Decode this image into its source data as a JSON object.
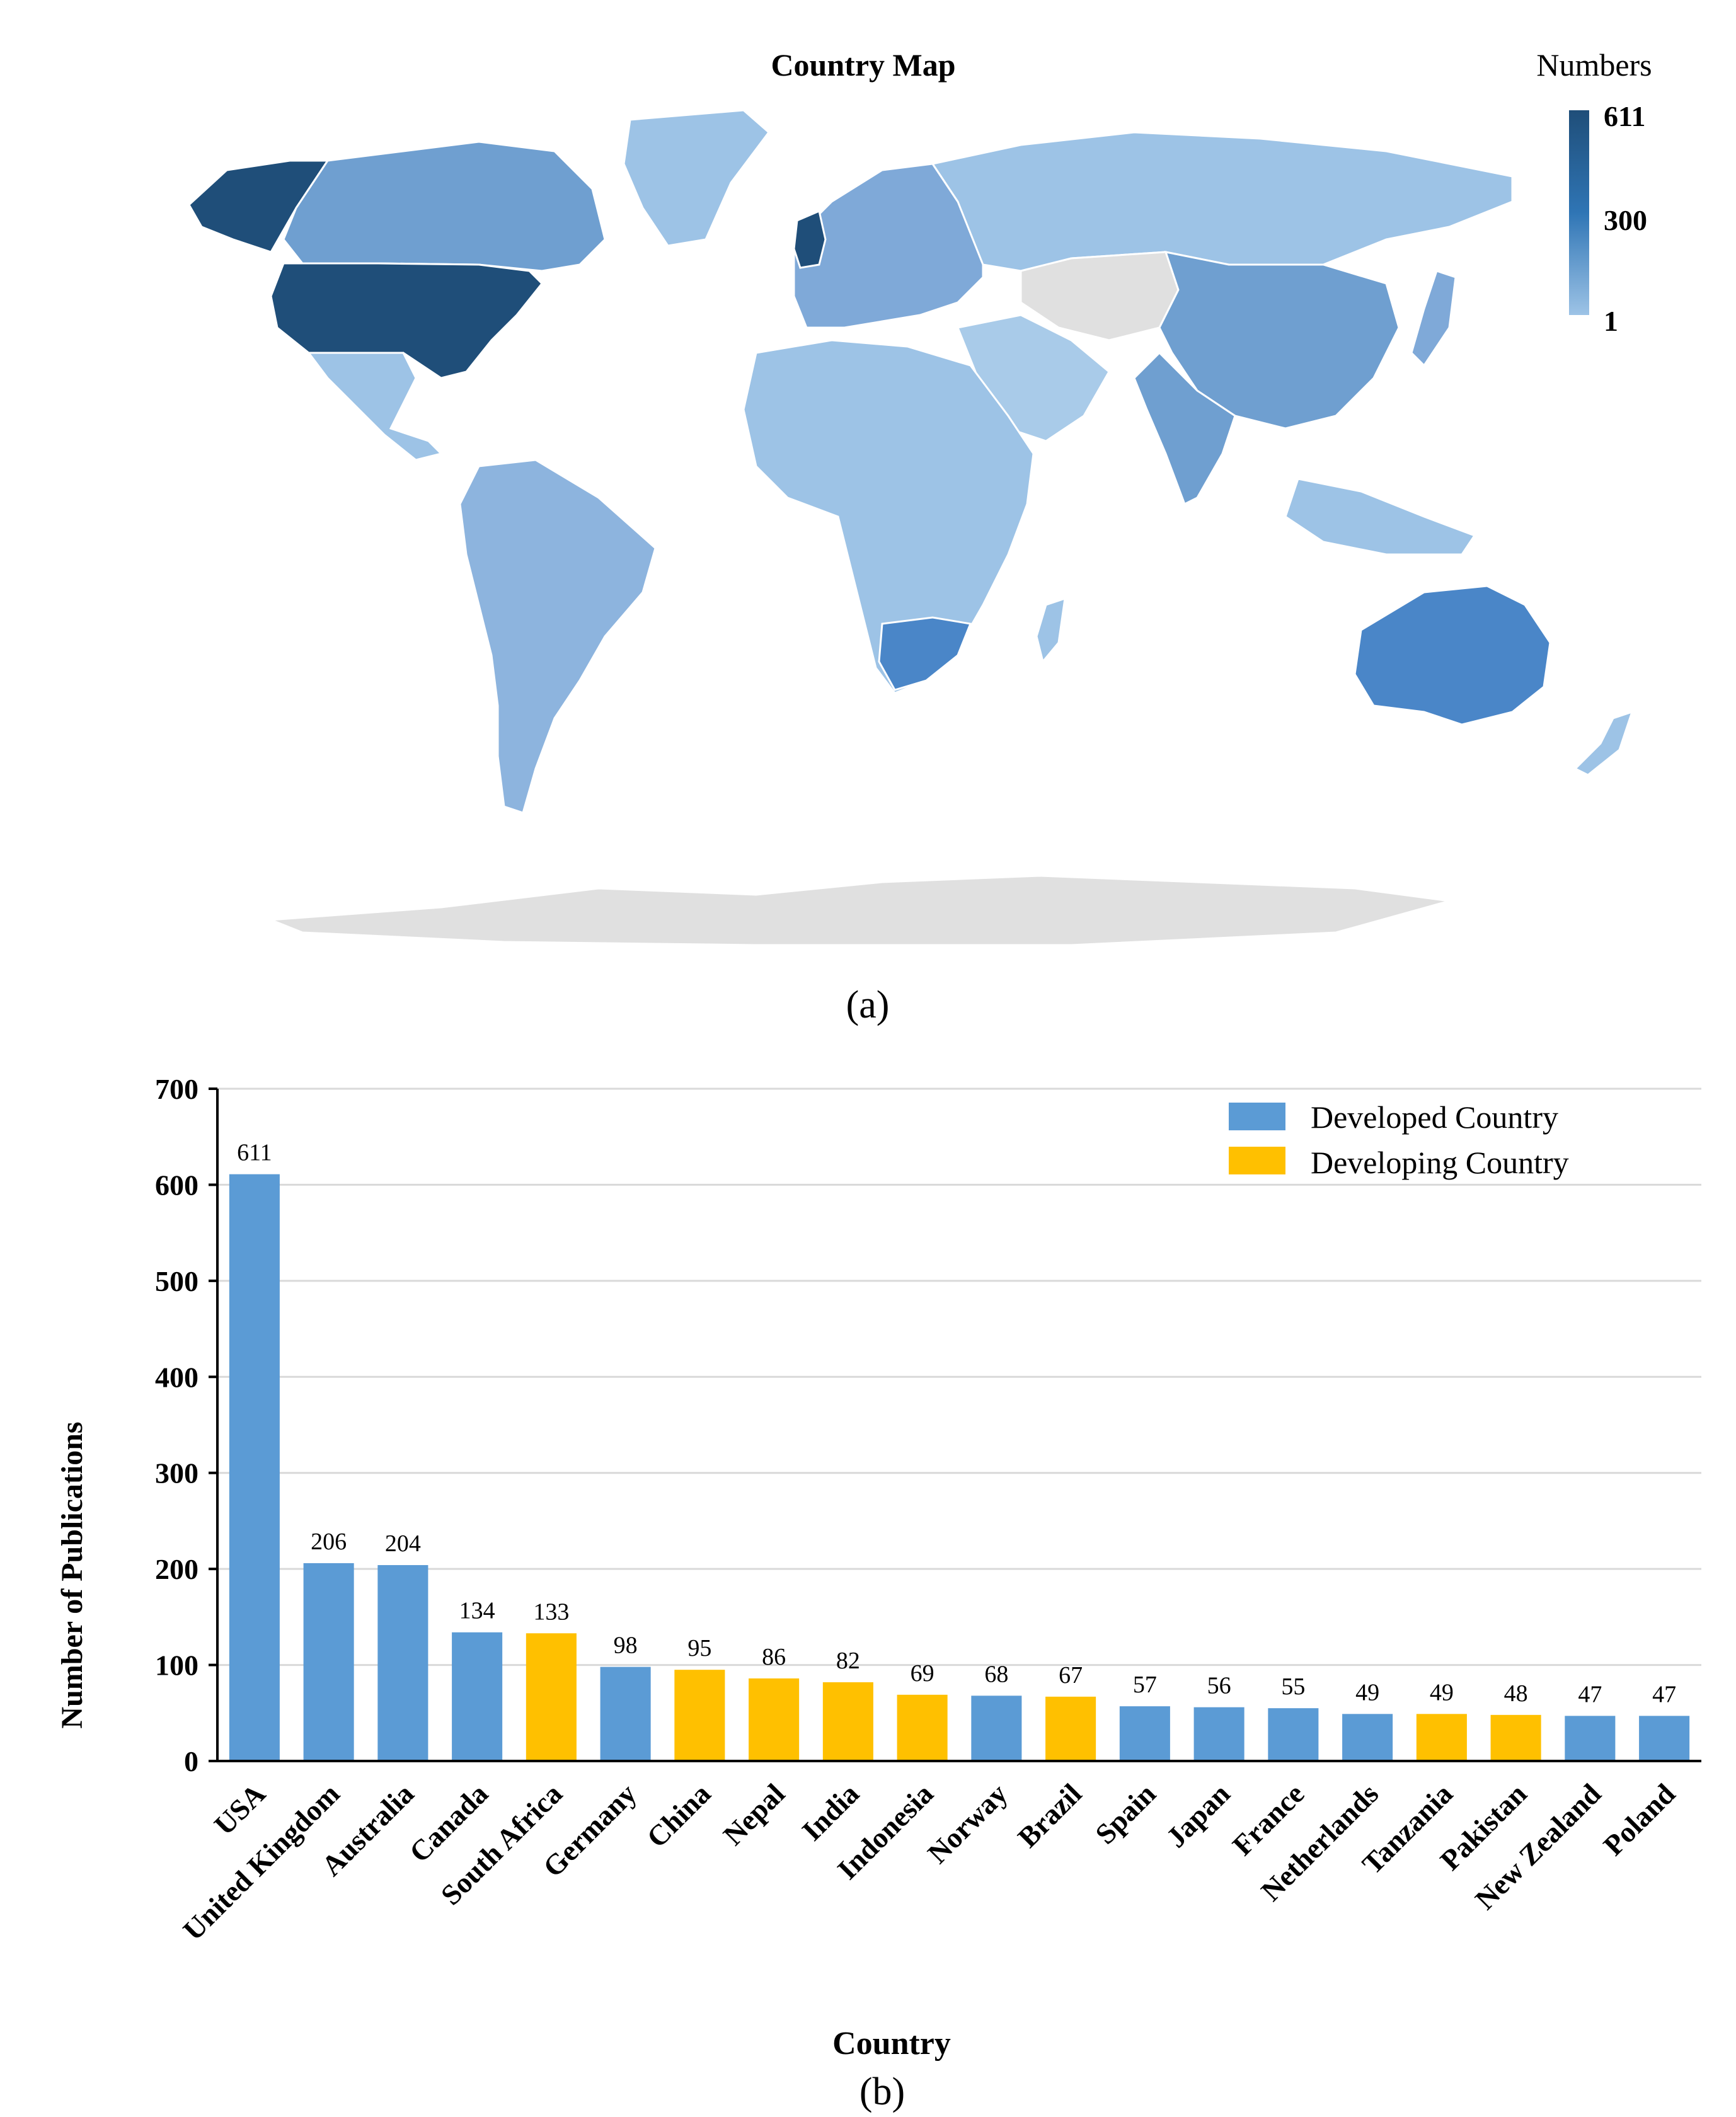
{
  "map": {
    "title": "Country Map",
    "legend_title": "Numbers",
    "legend_max": "611",
    "legend_mid": "300",
    "legend_min": "1",
    "colors": {
      "high": "#1f4e79",
      "mid": "#2f75b5",
      "low": "#9dc3e6",
      "none": "#e0e0e0"
    },
    "caption": "(a)"
  },
  "chart_data": {
    "type": "bar",
    "categories": [
      "USA",
      "United Kingdom",
      "Australia",
      "Canada",
      "South Africa",
      "Germany",
      "China",
      "Nepal",
      "India",
      "Indonesia",
      "Norway",
      "Brazil",
      "Spain",
      "Japan",
      "France",
      "Netherlands",
      "Tanzania",
      "Pakistan",
      "New Zealand",
      "Poland"
    ],
    "values": [
      611,
      206,
      204,
      134,
      133,
      98,
      95,
      86,
      82,
      69,
      68,
      67,
      57,
      56,
      55,
      49,
      49,
      48,
      47,
      47
    ],
    "group": [
      "Developed Country",
      "Developed Country",
      "Developed Country",
      "Developed Country",
      "Developing Country",
      "Developed Country",
      "Developing Country",
      "Developing Country",
      "Developing Country",
      "Developing Country",
      "Developed Country",
      "Developing Country",
      "Developed Country",
      "Developed Country",
      "Developed Country",
      "Developed Country",
      "Developing Country",
      "Developing Country",
      "Developed Country",
      "Developed Country"
    ],
    "series": [
      {
        "name": "Developed Country",
        "color": "#5b9bd5"
      },
      {
        "name": "Developing Country",
        "color": "#ffc000"
      }
    ],
    "xlabel": "Country",
    "ylabel": "Number of  Publications",
    "ylim": [
      0,
      700
    ],
    "yticks": [
      0,
      100,
      200,
      300,
      400,
      500,
      600,
      700
    ],
    "grid": true,
    "legend_position": "top-right",
    "caption": "(b)"
  }
}
